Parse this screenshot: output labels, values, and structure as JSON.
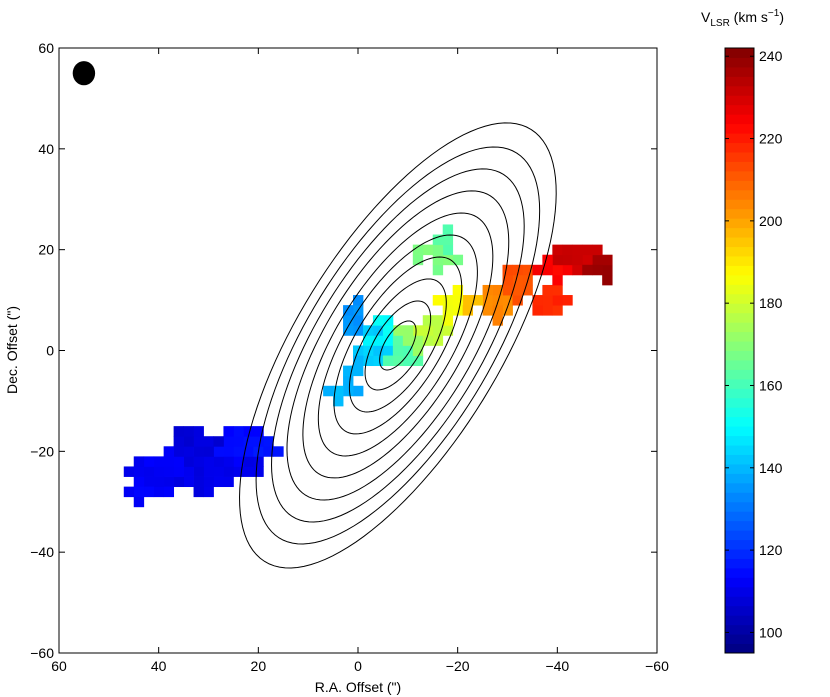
{
  "chart_data": {
    "type": "heatmap",
    "title": "",
    "xlabel": "R.A. Offset (\")",
    "ylabel": "Dec. Offset (\")",
    "xlim": [
      60,
      -60
    ],
    "ylim": [
      -60,
      60
    ],
    "x_reversed": true,
    "xticks": [
      60,
      40,
      20,
      0,
      -20,
      -40,
      -60
    ],
    "yticks": [
      -60,
      -40,
      -20,
      0,
      20,
      40,
      60
    ],
    "xtick_labels": [
      "60",
      "40",
      "20",
      "0",
      "−20",
      "−40",
      "−60"
    ],
    "ytick_labels": [
      "−60",
      "−40",
      "−20",
      "0",
      "20",
      "40",
      "60"
    ],
    "colorbar": {
      "label_main": "V",
      "label_sub": "LSR",
      "label_unit_pre": " (km s",
      "label_unit_sup": "−1",
      "label_unit_post": ")",
      "min": 95,
      "max": 242,
      "ticks": [
        100,
        120,
        140,
        160,
        180,
        200,
        220,
        240
      ],
      "colormap": "jet"
    },
    "beam": {
      "ra": 55,
      "dec": 55,
      "major": 4.8,
      "minor": 4.5
    },
    "contours": {
      "center_ra": -8,
      "center_dec": 1,
      "pa_deg": 58,
      "axes": [
        {
          "major": 5.5,
          "minor": 2.6
        },
        {
          "major": 10,
          "minor": 4.6
        },
        {
          "major": 15,
          "minor": 6.6
        },
        {
          "major": 20,
          "minor": 8.5
        },
        {
          "major": 25,
          "minor": 10.5
        },
        {
          "major": 30,
          "minor": 12.4
        },
        {
          "major": 35,
          "minor": 14.5
        },
        {
          "major": 40,
          "minor": 16.4
        },
        {
          "major": 45,
          "minor": 18.3
        },
        {
          "major": 50.5,
          "minor": 20.2
        }
      ]
    },
    "velocity_clumps": [
      {
        "ra": 30,
        "dec": -22,
        "rx": 10,
        "ry": 5.5,
        "v": 110
      },
      {
        "ra": 38,
        "dec": -24,
        "rx": 7,
        "ry": 4,
        "v": 112
      },
      {
        "ra": 24,
        "dec": -19,
        "rx": 6,
        "ry": 3.5,
        "v": 114
      },
      {
        "ra": 19,
        "dec": -20,
        "rx": 4,
        "ry": 2.5,
        "v": 116
      },
      {
        "ra": 33,
        "dec": -18,
        "rx": 5,
        "ry": 3.5,
        "v": 108
      },
      {
        "ra": 42,
        "dec": -28,
        "rx": 3,
        "ry": 1.6,
        "v": 113
      },
      {
        "ra": 0,
        "dec": 6,
        "rx": 2.5,
        "ry": 4,
        "v": 135
      },
      {
        "ra": -3,
        "dec": 0,
        "rx": 3,
        "ry": 3,
        "v": 143
      },
      {
        "ra": 1,
        "dec": -5,
        "rx": 2.5,
        "ry": 3,
        "v": 138
      },
      {
        "ra": 4,
        "dec": -8,
        "rx": 2.5,
        "ry": 1.8,
        "v": 140
      },
      {
        "ra": -6,
        "dec": 3,
        "rx": 3,
        "ry": 3,
        "v": 150
      },
      {
        "ra": -9,
        "dec": -1,
        "rx": 3.5,
        "ry": 3,
        "v": 162
      },
      {
        "ra": -12,
        "dec": 2,
        "rx": 3,
        "ry": 3,
        "v": 172
      },
      {
        "ra": -16,
        "dec": 18,
        "rx": 4,
        "ry": 3,
        "v": 168
      },
      {
        "ra": -18,
        "dec": 21,
        "rx": 2.5,
        "ry": 2,
        "v": 162
      },
      {
        "ra": -15,
        "dec": 5,
        "rx": 3,
        "ry": 2.5,
        "v": 178
      },
      {
        "ra": -20,
        "dec": 8,
        "rx": 3,
        "ry": 3,
        "v": 186
      },
      {
        "ra": -24,
        "dec": 9,
        "rx": 3,
        "ry": 3,
        "v": 196
      },
      {
        "ra": -29,
        "dec": 10,
        "rx": 3.5,
        "ry": 3.5,
        "v": 204
      },
      {
        "ra": -33,
        "dec": 13,
        "rx": 4,
        "ry": 4,
        "v": 212
      },
      {
        "ra": -38,
        "dec": 9,
        "rx": 4,
        "ry": 3.5,
        "v": 218
      },
      {
        "ra": -41,
        "dec": 16,
        "rx": 4,
        "ry": 3,
        "v": 224
      },
      {
        "ra": -45,
        "dec": 19,
        "rx": 4,
        "ry": 3,
        "v": 231
      },
      {
        "ra": -50,
        "dec": 17,
        "rx": 3,
        "ry": 2.5,
        "v": 238
      }
    ]
  }
}
